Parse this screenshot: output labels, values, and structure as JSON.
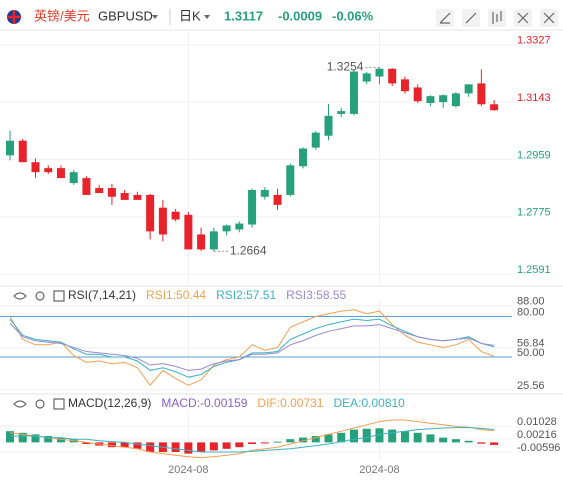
{
  "header": {
    "pair": "英镑/美元",
    "symbol": "GBPUSD",
    "period": "日K",
    "price": "1.3117",
    "change": "-0.0009",
    "change_pct": "-0.06%"
  },
  "chart_data": [
    {
      "type": "candlestick",
      "up_color": "#26a17b",
      "down_color": "#e8232c",
      "categories": [
        null,
        null,
        null,
        null,
        null,
        null,
        null,
        null,
        null,
        null,
        null,
        null,
        null,
        null,
        "2024-08",
        null,
        null,
        null,
        null,
        null,
        null,
        null,
        null,
        null,
        null,
        null,
        null,
        null,
        null,
        "2024-08",
        null,
        null,
        null,
        null,
        null,
        null,
        null,
        null,
        null
      ],
      "open": [
        1.2972,
        1.3019,
        1.295,
        1.2931,
        1.2931,
        1.2883,
        1.2899,
        1.2867,
        1.2867,
        1.2851,
        1.2845,
        1.2845,
        1.2804,
        1.2791,
        1.2781,
        1.2718,
        1.267,
        1.2728,
        1.2734,
        1.275,
        1.2839,
        1.2845,
        1.2845,
        1.2937,
        1.2997,
        1.3035,
        1.3105,
        1.3105,
        1.3209,
        1.3225,
        1.325,
        1.3216,
        1.319,
        1.314,
        1.3143,
        1.313,
        1.3171,
        1.3203,
        1.3136
      ],
      "high": [
        1.3051,
        1.3025,
        1.2962,
        1.294,
        1.294,
        1.2925,
        1.2905,
        1.2877,
        1.288,
        1.2861,
        1.2855,
        1.2848,
        1.2829,
        1.28,
        1.279,
        1.274,
        1.274,
        1.275,
        1.276,
        1.2865,
        1.287,
        1.2865,
        1.2945,
        1.2998,
        1.305,
        1.3137,
        1.3125,
        1.3248,
        1.324,
        1.3254,
        1.3252,
        1.3225,
        1.32,
        1.3165,
        1.3168,
        1.3175,
        1.32,
        1.3248,
        1.315
      ],
      "low": [
        1.2956,
        1.295,
        1.2899,
        1.2912,
        1.2899,
        1.2877,
        1.2845,
        1.2851,
        1.2813,
        1.2829,
        1.2829,
        1.2702,
        1.2696,
        1.276,
        1.267,
        1.2665,
        1.2664,
        1.2715,
        1.2725,
        1.274,
        1.283,
        1.2797,
        1.284,
        1.293,
        1.299,
        1.302,
        1.3095,
        1.31,
        1.32,
        1.32,
        1.3195,
        1.317,
        1.314,
        1.313,
        1.3125,
        1.3125,
        1.316,
        1.313,
        1.3115
      ],
      "close": [
        1.3019,
        1.295,
        1.2918,
        1.2918,
        1.2899,
        1.2918,
        1.2845,
        1.2851,
        1.2839,
        1.2829,
        1.2829,
        1.2728,
        1.2718,
        1.2766,
        1.267,
        1.267,
        1.2728,
        1.2747,
        1.2753,
        1.2861,
        1.2861,
        1.2813,
        1.294,
        1.2994,
        1.3045,
        1.3099,
        1.3114,
        1.3241,
        1.3235,
        1.325,
        1.3203,
        1.3178,
        1.3146,
        1.3162,
        1.3165,
        1.3171,
        1.32,
        1.3136,
        1.3117
      ],
      "ylim": [
        1.2559,
        1.3368
      ],
      "yticks": [
        1.3327,
        1.3143,
        1.2959,
        1.2775,
        1.2591
      ],
      "annotations": [
        {
          "value": 1.3254,
          "index": 29
        },
        {
          "value": 1.2664,
          "index": 16
        }
      ]
    },
    {
      "type": "line",
      "title": "RSI(7,14,21)",
      "series": [
        {
          "name": "RSI1:50.44",
          "color": "#f0a050",
          "values": [
            80,
            63,
            59,
            59,
            61,
            51,
            46,
            47,
            45,
            46,
            42,
            29,
            40,
            34,
            29,
            33,
            44,
            48,
            50,
            59,
            55,
            57,
            72,
            76,
            80,
            82,
            84,
            85,
            82,
            84,
            74,
            66,
            61,
            59,
            57,
            59,
            63,
            54,
            50.44
          ]
        },
        {
          "name": "RSI2:57.51",
          "color": "#3bb3c3",
          "values": [
            78,
            66,
            63,
            62,
            61,
            56,
            52,
            52,
            50,
            50,
            47,
            40,
            42,
            39,
            35,
            37,
            43,
            46,
            48,
            53,
            53,
            54,
            63,
            67,
            71,
            74,
            76,
            78,
            77,
            78,
            73,
            69,
            65,
            63,
            62,
            63,
            65,
            60,
            57.51
          ]
        },
        {
          "name": "RSI3:58.55",
          "color": "#9a8ad0",
          "values": [
            75,
            65,
            62,
            61,
            60,
            57,
            54,
            53,
            52,
            51,
            49,
            44,
            45,
            43,
            40,
            41,
            45,
            47,
            48,
            52,
            52,
            53,
            59,
            62,
            66,
            69,
            71,
            73,
            73,
            74,
            71,
            68,
            65,
            63,
            62,
            63,
            64,
            60,
            58.55
          ]
        }
      ],
      "ylim": [
        24,
        90
      ],
      "yticks": [
        {
          "value": 88,
          "label": "88.00"
        },
        {
          "value": 80,
          "label": "80.00"
        },
        {
          "value": 56.84,
          "label": "56.84"
        },
        {
          "value": 50,
          "label": "50.00"
        },
        {
          "value": 25.56,
          "label": "25.56"
        }
      ],
      "hlines": [
        80,
        50
      ],
      "hline_color": "#5aa0d8"
    },
    {
      "type": "macd",
      "title": "MACD(12,26,9)",
      "up_color": "#26a17b",
      "down_color": "#e8232c",
      "series": [
        {
          "name": "MACD:-0.00159",
          "color": "#8a5fc8",
          "style": "bar",
          "values": [
            0.007,
            0.006,
            0.005,
            0.004,
            0.003,
            0.002,
            -0.001,
            -0.002,
            -0.003,
            -0.003,
            -0.004,
            -0.006,
            -0.006,
            -0.006,
            -0.007,
            -0.006,
            -0.005,
            -0.004,
            -0.003,
            -0.001,
            -0.0005,
            0.0005,
            0.002,
            0.003,
            0.004,
            0.005,
            0.006,
            0.008,
            0.0085,
            0.0088,
            0.008,
            0.007,
            0.006,
            0.005,
            0.003,
            0.002,
            0.001,
            -0.0008,
            -0.00159
          ]
        },
        {
          "name": "DIF:0.00731",
          "color": "#f0a050",
          "style": "line",
          "values": [
            0.006,
            0.005,
            0.004,
            0.003,
            0.002,
            0.001,
            0,
            -0.001,
            -0.002,
            -0.003,
            -0.004,
            -0.006,
            -0.007,
            -0.008,
            -0.009,
            -0.0095,
            -0.009,
            -0.008,
            -0.007,
            -0.005,
            -0.004,
            -0.003,
            -0.001,
            0.001,
            0.003,
            0.005,
            0.007,
            0.009,
            0.011,
            0.013,
            0.014,
            0.014,
            0.013,
            0.012,
            0.011,
            0.01,
            0.0095,
            0.008,
            0.00731
          ]
        },
        {
          "name": "DEA:0.00810",
          "color": "#3bb3c3",
          "style": "line",
          "values": [
            0.004,
            0.004,
            0.004,
            0.003,
            0.003,
            0.002,
            0.002,
            0.001,
            0.0005,
            0,
            -0.001,
            -0.002,
            -0.003,
            -0.004,
            -0.005,
            -0.006,
            -0.006,
            -0.006,
            -0.006,
            -0.0055,
            -0.005,
            -0.0045,
            -0.004,
            -0.003,
            -0.002,
            -0.001,
            0.0005,
            0.002,
            0.003,
            0.005,
            0.006,
            0.007,
            0.008,
            0.0085,
            0.009,
            0.0092,
            0.0093,
            0.0088,
            0.0081
          ]
        }
      ],
      "ylim": [
        -0.011,
        0.019
      ],
      "yticks": [
        0.01028,
        0.00216,
        -0.00596
      ]
    }
  ]
}
